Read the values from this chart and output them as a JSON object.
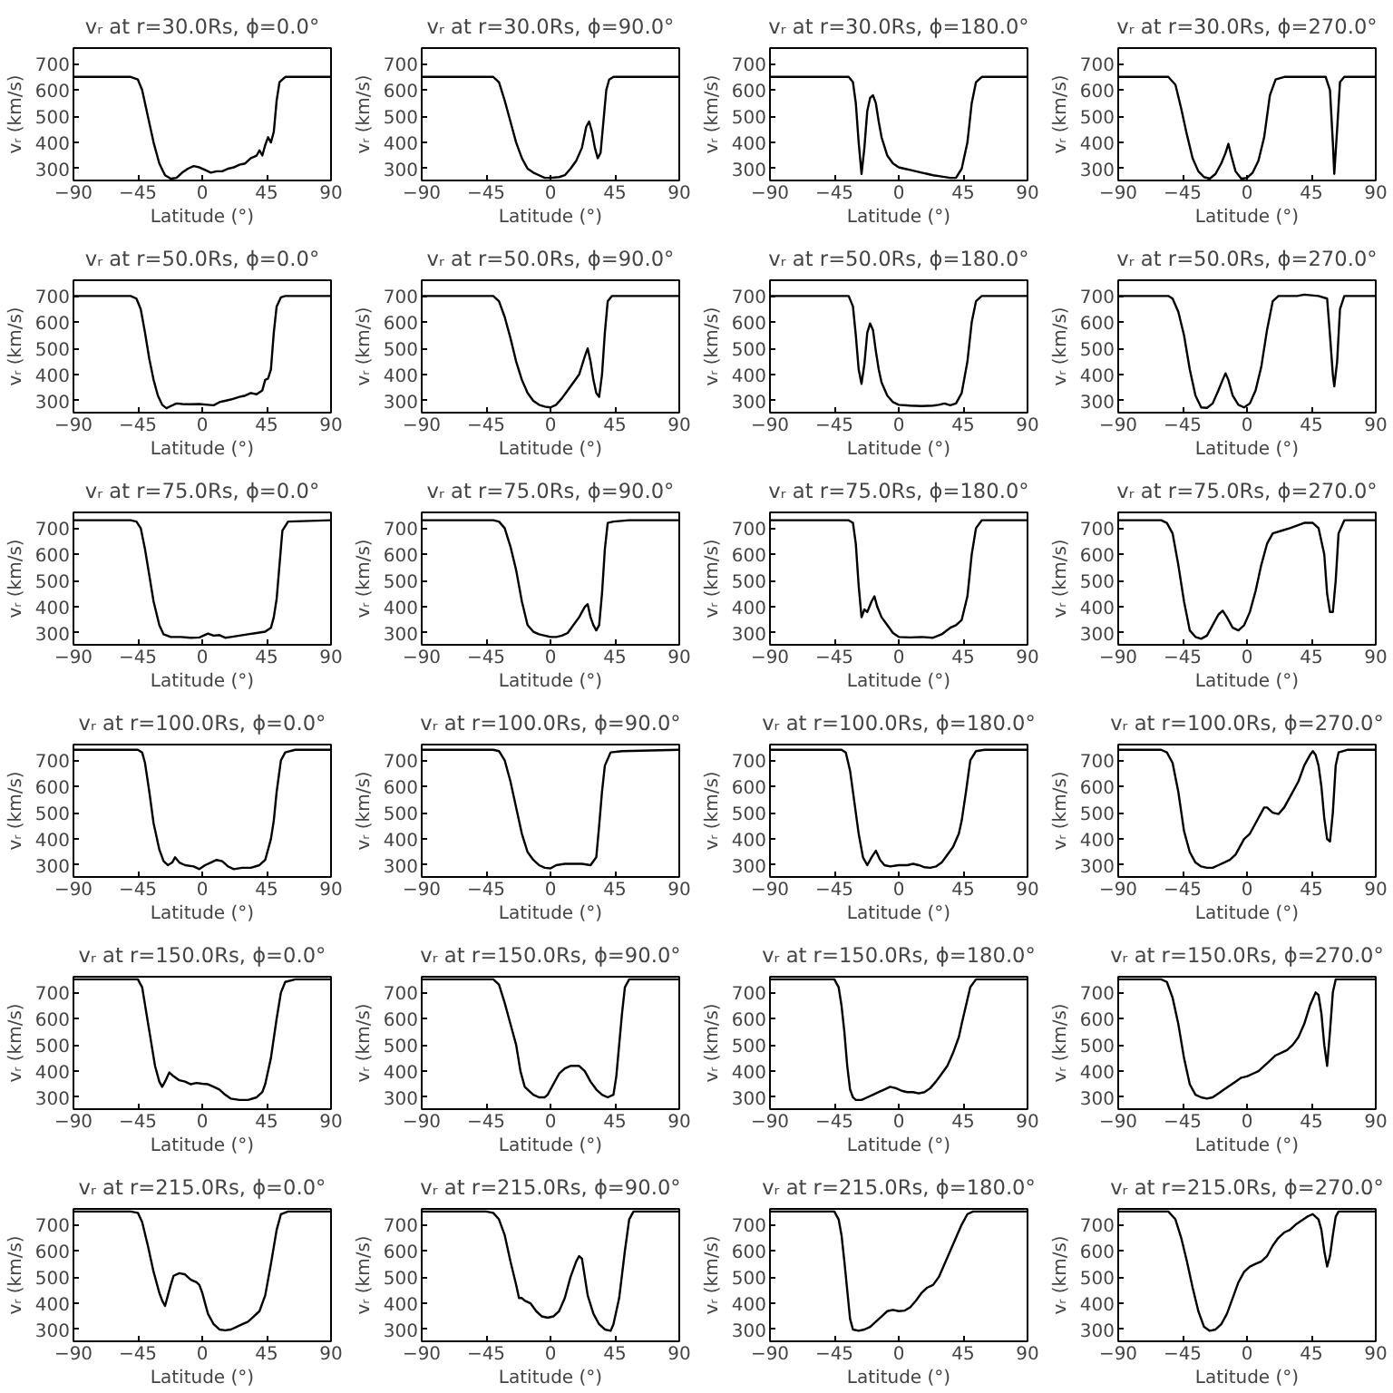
{
  "chart_data": [
    {
      "type": "line",
      "title": "vᵣ at r=30.0Rs, ϕ=0.0°",
      "xlabel": "Latitude (°)",
      "ylabel": "vᵣ (km/s)",
      "color": "#000000",
      "xlim": [
        -90,
        90
      ],
      "ylim": [
        255,
        760
      ],
      "xticks": [
        -90,
        -45,
        0,
        45,
        90
      ],
      "yticks": [
        300,
        400,
        500,
        600,
        700
      ],
      "x": [
        -90,
        -50,
        -45,
        -42,
        -38,
        -34,
        -30,
        -26,
        -22,
        -18,
        -14,
        -10,
        -6,
        -2,
        2,
        6,
        10,
        14,
        18,
        22,
        26,
        30,
        34,
        38,
        40,
        42,
        44,
        46,
        48,
        50,
        52,
        54,
        58,
        90
      ],
      "values": [
        650,
        650,
        640,
        600,
        500,
        400,
        320,
        275,
        262,
        265,
        285,
        300,
        310,
        305,
        295,
        285,
        290,
        290,
        300,
        305,
        315,
        320,
        340,
        350,
        370,
        350,
        390,
        420,
        400,
        440,
        560,
        630,
        650,
        650
      ]
    },
    {
      "type": "line",
      "title": "vᵣ at r=30.0Rs, ϕ=90.0°",
      "xlabel": "Latitude (°)",
      "ylabel": "vᵣ (km/s)",
      "color": "#000000",
      "xlim": [
        -90,
        90
      ],
      "ylim": [
        255,
        760
      ],
      "xticks": [
        -90,
        -45,
        0,
        45,
        90
      ],
      "yticks": [
        300,
        400,
        500,
        600,
        700
      ],
      "x": [
        -90,
        -40,
        -36,
        -32,
        -28,
        -24,
        -20,
        -16,
        -12,
        -8,
        -4,
        0,
        6,
        10,
        14,
        18,
        22,
        25,
        27,
        29,
        31,
        33,
        35,
        37,
        39,
        41,
        44,
        90
      ],
      "values": [
        650,
        650,
        630,
        560,
        480,
        400,
        340,
        300,
        285,
        275,
        265,
        265,
        268,
        275,
        300,
        330,
        380,
        460,
        480,
        440,
        380,
        340,
        360,
        480,
        600,
        640,
        650,
        650
      ]
    },
    {
      "type": "line",
      "title": "vᵣ at r=30.0Rs, ϕ=180.0°",
      "xlabel": "Latitude (°)",
      "ylabel": "vᵣ (km/s)",
      "color": "#000000",
      "xlim": [
        -90,
        90
      ],
      "ylim": [
        255,
        760
      ],
      "xticks": [
        -90,
        -45,
        0,
        45,
        90
      ],
      "yticks": [
        300,
        400,
        500,
        600,
        700
      ],
      "x": [
        -90,
        -35,
        -32,
        -30,
        -28,
        -26,
        -24,
        -22,
        -20,
        -18,
        -16,
        -14,
        -12,
        -8,
        -4,
        0,
        4,
        8,
        12,
        16,
        20,
        24,
        30,
        36,
        40,
        44,
        48,
        51,
        54,
        58,
        90
      ],
      "values": [
        650,
        650,
        630,
        550,
        400,
        280,
        380,
        520,
        570,
        580,
        550,
        480,
        420,
        350,
        320,
        305,
        300,
        295,
        290,
        285,
        280,
        275,
        270,
        265,
        265,
        300,
        400,
        550,
        630,
        650,
        650
      ]
    },
    {
      "type": "line",
      "title": "vᵣ at r=30.0Rs, ϕ=270.0°",
      "xlabel": "Latitude (°)",
      "ylabel": "vᵣ (km/s)",
      "color": "#000000",
      "xlim": [
        -90,
        90
      ],
      "ylim": [
        255,
        760
      ],
      "xticks": [
        -90,
        -45,
        0,
        45,
        90
      ],
      "yticks": [
        300,
        400,
        500,
        600,
        700
      ],
      "x": [
        -90,
        -55,
        -50,
        -46,
        -42,
        -38,
        -34,
        -30,
        -26,
        -22,
        -18,
        -15,
        -13,
        -11,
        -8,
        -4,
        0,
        4,
        8,
        12,
        16,
        20,
        26,
        55,
        58,
        60,
        61,
        63,
        65,
        68,
        90
      ],
      "values": [
        650,
        650,
        620,
        530,
        430,
        340,
        290,
        268,
        262,
        280,
        320,
        360,
        395,
        350,
        290,
        262,
        265,
        285,
        330,
        420,
        580,
        640,
        650,
        650,
        600,
        400,
        280,
        450,
        630,
        650,
        650
      ]
    },
    {
      "type": "line",
      "title": "vᵣ at r=50.0Rs, ϕ=0.0°",
      "xlabel": "Latitude (°)",
      "ylabel": "vᵣ (km/s)",
      "color": "#000000",
      "xlim": [
        -90,
        90
      ],
      "ylim": [
        255,
        760
      ],
      "xticks": [
        -90,
        -45,
        0,
        45,
        90
      ],
      "yticks": [
        300,
        400,
        500,
        600,
        700
      ],
      "x": [
        -90,
        -50,
        -46,
        -43,
        -40,
        -37,
        -34,
        -31,
        -28,
        -25,
        -22,
        -18,
        -14,
        -8,
        -2,
        4,
        8,
        12,
        16,
        20,
        26,
        30,
        34,
        38,
        42,
        44,
        46,
        48,
        50,
        52,
        55,
        58,
        90
      ],
      "values": [
        700,
        700,
        690,
        650,
        560,
        460,
        380,
        320,
        285,
        272,
        280,
        290,
        288,
        287,
        288,
        285,
        283,
        295,
        300,
        305,
        315,
        320,
        330,
        325,
        340,
        380,
        385,
        420,
        560,
        660,
        695,
        700,
        700
      ]
    },
    {
      "type": "line",
      "title": "vᵣ at r=50.0Rs, ϕ=90.0°",
      "xlabel": "Latitude (°)",
      "ylabel": "vᵣ (km/s)",
      "color": "#000000",
      "xlim": [
        -90,
        90
      ],
      "ylim": [
        255,
        760
      ],
      "xticks": [
        -90,
        -45,
        0,
        45,
        90
      ],
      "yticks": [
        300,
        400,
        500,
        600,
        700
      ],
      "x": [
        -90,
        -40,
        -36,
        -32,
        -28,
        -24,
        -20,
        -16,
        -12,
        -8,
        -4,
        0,
        4,
        8,
        12,
        16,
        20,
        24,
        26,
        28,
        30,
        32,
        34,
        36,
        38,
        40,
        43,
        90
      ],
      "values": [
        700,
        700,
        680,
        620,
        540,
        450,
        380,
        330,
        300,
        285,
        278,
        275,
        285,
        310,
        340,
        370,
        400,
        470,
        500,
        450,
        380,
        330,
        315,
        400,
        560,
        680,
        700,
        700
      ]
    },
    {
      "type": "line",
      "title": "vᵣ at r=50.0Rs, ϕ=180.0°",
      "xlabel": "Latitude (°)",
      "ylabel": "vᵣ (km/s)",
      "color": "#000000",
      "xlim": [
        -90,
        90
      ],
      "ylim": [
        255,
        760
      ],
      "xticks": [
        -90,
        -45,
        0,
        45,
        90
      ],
      "yticks": [
        300,
        400,
        500,
        600,
        700
      ],
      "x": [
        -90,
        -35,
        -32,
        -30,
        -28,
        -26,
        -24,
        -22,
        -20,
        -18,
        -16,
        -14,
        -12,
        -8,
        -4,
        0,
        8,
        16,
        24,
        28,
        32,
        36,
        40,
        44,
        48,
        51,
        54,
        58,
        90
      ],
      "values": [
        700,
        700,
        660,
        550,
        420,
        365,
        440,
        560,
        595,
        570,
        490,
        420,
        370,
        320,
        295,
        285,
        282,
        280,
        282,
        285,
        290,
        283,
        290,
        330,
        450,
        600,
        680,
        700,
        700
      ]
    },
    {
      "type": "line",
      "title": "vᵣ at r=50.0Rs, ϕ=270.0°",
      "xlabel": "Latitude (°)",
      "ylabel": "vᵣ (km/s)",
      "color": "#000000",
      "xlim": [
        -90,
        90
      ],
      "ylim": [
        255,
        760
      ],
      "xticks": [
        -90,
        -45,
        0,
        45,
        90
      ],
      "yticks": [
        300,
        400,
        500,
        600,
        700
      ],
      "x": [
        -90,
        -55,
        -52,
        -48,
        -44,
        -40,
        -36,
        -32,
        -28,
        -24,
        -20,
        -17,
        -15,
        -13,
        -10,
        -6,
        -2,
        2,
        6,
        10,
        14,
        18,
        22,
        35,
        40,
        50,
        56,
        58,
        60,
        61,
        63,
        65,
        68,
        90
      ],
      "values": [
        700,
        700,
        690,
        640,
        550,
        420,
        320,
        275,
        273,
        290,
        340,
        380,
        405,
        380,
        320,
        285,
        275,
        290,
        340,
        430,
        570,
        680,
        700,
        700,
        705,
        700,
        690,
        550,
        400,
        355,
        450,
        650,
        700,
        700
      ]
    },
    {
      "type": "line",
      "title": "vᵣ at r=75.0Rs, ϕ=0.0°",
      "xlabel": "Latitude (°)",
      "ylabel": "vᵣ (km/s)",
      "color": "#000000",
      "xlim": [
        -90,
        90
      ],
      "ylim": [
        255,
        760
      ],
      "xticks": [
        -90,
        -45,
        0,
        45,
        90
      ],
      "yticks": [
        300,
        400,
        500,
        600,
        700
      ],
      "x": [
        -90,
        -50,
        -46,
        -43,
        -40,
        -37,
        -34,
        -30,
        -27,
        -22,
        -15,
        -8,
        -2,
        4,
        8,
        12,
        16,
        20,
        26,
        32,
        38,
        44,
        48,
        50,
        52,
        54,
        56,
        60,
        90
      ],
      "values": [
        730,
        730,
        725,
        700,
        620,
        520,
        420,
        330,
        295,
        285,
        285,
        282,
        283,
        298,
        290,
        292,
        282,
        285,
        290,
        295,
        300,
        305,
        320,
        360,
        430,
        560,
        690,
        725,
        730
      ]
    },
    {
      "type": "line",
      "title": "vᵣ at r=75.0Rs, ϕ=90.0°",
      "xlabel": "Latitude (°)",
      "ylabel": "vᵣ (km/s)",
      "color": "#000000",
      "xlim": [
        -90,
        90
      ],
      "ylim": [
        255,
        760
      ],
      "xticks": [
        -90,
        -45,
        0,
        45,
        90
      ],
      "yticks": [
        300,
        400,
        500,
        600,
        700
      ],
      "x": [
        -90,
        -40,
        -36,
        -32,
        -28,
        -24,
        -20,
        -16,
        -12,
        -8,
        -4,
        0,
        4,
        8,
        12,
        16,
        20,
        24,
        26,
        28,
        30,
        32,
        34,
        36,
        38,
        40,
        44,
        55,
        90
      ],
      "values": [
        730,
        730,
        725,
        700,
        630,
        540,
        420,
        330,
        305,
        295,
        290,
        285,
        285,
        290,
        300,
        330,
        360,
        400,
        410,
        360,
        330,
        310,
        330,
        450,
        620,
        720,
        725,
        730,
        730
      ]
    },
    {
      "type": "line",
      "title": "vᵣ at r=75.0Rs, ϕ=180.0°",
      "xlabel": "Latitude (°)",
      "ylabel": "vᵣ (km/s)",
      "color": "#000000",
      "xlim": [
        -90,
        90
      ],
      "ylim": [
        255,
        760
      ],
      "xticks": [
        -90,
        -45,
        0,
        45,
        90
      ],
      "yticks": [
        300,
        400,
        500,
        600,
        700
      ],
      "x": [
        -90,
        -35,
        -32,
        -30,
        -28,
        -26,
        -24,
        -22,
        -19,
        -17,
        -15,
        -12,
        -8,
        -4,
        0,
        8,
        16,
        24,
        30,
        36,
        40,
        44,
        48,
        51,
        54,
        58,
        90
      ],
      "values": [
        730,
        730,
        720,
        640,
        480,
        360,
        390,
        380,
        420,
        440,
        400,
        360,
        330,
        300,
        285,
        283,
        285,
        282,
        295,
        320,
        330,
        350,
        440,
        600,
        700,
        730,
        730
      ]
    },
    {
      "type": "line",
      "title": "vᵣ at r=75.0Rs, ϕ=270.0°",
      "xlabel": "Latitude (°)",
      "ylabel": "vᵣ (km/s)",
      "color": "#000000",
      "xlim": [
        -90,
        90
      ],
      "ylim": [
        255,
        760
      ],
      "xticks": [
        -90,
        -45,
        0,
        45,
        90
      ],
      "yticks": [
        300,
        400,
        500,
        600,
        700
      ],
      "x": [
        -90,
        -60,
        -56,
        -52,
        -48,
        -44,
        -40,
        -36,
        -32,
        -28,
        -24,
        -20,
        -17,
        -14,
        -10,
        -6,
        -2,
        2,
        6,
        10,
        14,
        18,
        24,
        30,
        40,
        46,
        50,
        54,
        56,
        58,
        60,
        62,
        64,
        68,
        90
      ],
      "values": [
        730,
        730,
        720,
        680,
        560,
        420,
        310,
        285,
        278,
        290,
        330,
        370,
        385,
        360,
        320,
        310,
        330,
        380,
        460,
        560,
        640,
        680,
        690,
        700,
        720,
        720,
        700,
        600,
        450,
        380,
        380,
        500,
        680,
        730,
        730
      ]
    },
    {
      "type": "line",
      "title": "vᵣ at r=100.0Rs, ϕ=0.0°",
      "xlabel": "Latitude (°)",
      "ylabel": "vᵣ (km/s)",
      "color": "#000000",
      "xlim": [
        -90,
        90
      ],
      "ylim": [
        255,
        760
      ],
      "xticks": [
        -90,
        -45,
        0,
        45,
        90
      ],
      "yticks": [
        300,
        400,
        500,
        600,
        700
      ],
      "x": [
        -90,
        -45,
        -42,
        -40,
        -37,
        -34,
        -30,
        -27,
        -24,
        -21,
        -19,
        -16,
        -12,
        -6,
        -2,
        2,
        6,
        10,
        14,
        18,
        22,
        28,
        34,
        40,
        44,
        48,
        50,
        52,
        55,
        58,
        65,
        90
      ],
      "values": [
        740,
        740,
        730,
        690,
        580,
        460,
        360,
        315,
        300,
        310,
        330,
        310,
        300,
        295,
        285,
        300,
        310,
        320,
        315,
        295,
        285,
        290,
        290,
        300,
        320,
        400,
        470,
        580,
        700,
        730,
        740,
        740
      ]
    },
    {
      "type": "line",
      "title": "vᵣ at r=100.0Rs, ϕ=90.0°",
      "xlabel": "Latitude (°)",
      "ylabel": "vᵣ (km/s)",
      "color": "#000000",
      "xlim": [
        -90,
        90
      ],
      "ylim": [
        255,
        760
      ],
      "xticks": [
        -90,
        -45,
        0,
        45,
        90
      ],
      "yticks": [
        300,
        400,
        500,
        600,
        700
      ],
      "x": [
        -90,
        -40,
        -36,
        -32,
        -28,
        -24,
        -20,
        -16,
        -12,
        -8,
        -4,
        0,
        4,
        10,
        16,
        22,
        28,
        32,
        34,
        36,
        38,
        42,
        50,
        90
      ],
      "values": [
        740,
        740,
        735,
        700,
        620,
        520,
        420,
        350,
        320,
        300,
        290,
        288,
        300,
        305,
        305,
        305,
        300,
        330,
        450,
        580,
        680,
        730,
        735,
        740
      ]
    },
    {
      "type": "line",
      "title": "vᵣ at r=100.0Rs, ϕ=180.0°",
      "xlabel": "Latitude (°)",
      "ylabel": "vᵣ (km/s)",
      "color": "#000000",
      "xlim": [
        -90,
        90
      ],
      "ylim": [
        255,
        760
      ],
      "xticks": [
        -90,
        -45,
        0,
        45,
        90
      ],
      "yticks": [
        300,
        400,
        500,
        600,
        700
      ],
      "x": [
        -90,
        -40,
        -37,
        -34,
        -31,
        -28,
        -25,
        -22,
        -19,
        -16,
        -13,
        -10,
        -6,
        0,
        6,
        10,
        14,
        18,
        22,
        26,
        30,
        34,
        38,
        42,
        44,
        47,
        50,
        54,
        60,
        90
      ],
      "values": [
        740,
        740,
        730,
        660,
        540,
        420,
        330,
        300,
        330,
        355,
        320,
        300,
        295,
        300,
        300,
        305,
        300,
        292,
        290,
        295,
        310,
        340,
        370,
        420,
        470,
        580,
        700,
        735,
        740,
        740
      ]
    },
    {
      "type": "line",
      "title": "vᵣ at r=100.0Rs, ϕ=270.0°",
      "xlabel": "Latitude (°)",
      "ylabel": "vᵣ (km/s)",
      "color": "#000000",
      "xlim": [
        -90,
        90
      ],
      "ylim": [
        255,
        760
      ],
      "xticks": [
        -90,
        -45,
        0,
        45,
        90
      ],
      "yticks": [
        300,
        400,
        500,
        600,
        700
      ],
      "x": [
        -90,
        -60,
        -56,
        -52,
        -48,
        -44,
        -40,
        -36,
        -32,
        -28,
        -24,
        -20,
        -16,
        -12,
        -8,
        -4,
        -2,
        2,
        6,
        10,
        12,
        14,
        18,
        22,
        26,
        30,
        36,
        40,
        44,
        46,
        48,
        50,
        52,
        54,
        56,
        58,
        60,
        62,
        64,
        70,
        90
      ],
      "values": [
        740,
        740,
        730,
        690,
        580,
        430,
        350,
        310,
        295,
        290,
        290,
        300,
        310,
        320,
        340,
        380,
        400,
        420,
        460,
        500,
        520,
        520,
        500,
        495,
        520,
        560,
        620,
        680,
        720,
        735,
        720,
        680,
        600,
        480,
        400,
        390,
        500,
        680,
        730,
        740,
        740
      ]
    },
    {
      "type": "line",
      "title": "vᵣ at r=150.0Rs, ϕ=0.0°",
      "xlabel": "Latitude (°)",
      "ylabel": "vᵣ (km/s)",
      "color": "#000000",
      "xlim": [
        -90,
        90
      ],
      "ylim": [
        255,
        760
      ],
      "xticks": [
        -90,
        -45,
        0,
        45,
        90
      ],
      "yticks": [
        300,
        400,
        500,
        600,
        700
      ],
      "x": [
        -90,
        -45,
        -42,
        -39,
        -36,
        -33,
        -30,
        -28,
        -26,
        -23,
        -20,
        -16,
        -12,
        -8,
        -4,
        0,
        4,
        8,
        12,
        16,
        20,
        26,
        32,
        38,
        42,
        44,
        48,
        52,
        55,
        58,
        65,
        90
      ],
      "values": [
        750,
        750,
        720,
        620,
        520,
        420,
        360,
        340,
        360,
        395,
        380,
        365,
        360,
        350,
        355,
        352,
        350,
        340,
        330,
        310,
        295,
        290,
        290,
        300,
        320,
        350,
        450,
        600,
        700,
        740,
        750,
        750
      ]
    },
    {
      "type": "line",
      "title": "vᵣ at r=150.0Rs, ϕ=90.0°",
      "xlabel": "Latitude (°)",
      "ylabel": "vᵣ (km/s)",
      "color": "#000000",
      "xlim": [
        -90,
        90
      ],
      "ylim": [
        255,
        760
      ],
      "xticks": [
        -90,
        -45,
        0,
        45,
        90
      ],
      "yticks": [
        300,
        400,
        500,
        600,
        700
      ],
      "x": [
        -90,
        -40,
        -36,
        -32,
        -28,
        -24,
        -21,
        -18,
        -15,
        -12,
        -8,
        -4,
        -2,
        2,
        6,
        10,
        14,
        20,
        24,
        28,
        32,
        36,
        40,
        44,
        46,
        48,
        50,
        52,
        55,
        90
      ],
      "values": [
        750,
        750,
        730,
        660,
        580,
        500,
        400,
        340,
        325,
        310,
        300,
        300,
        310,
        350,
        390,
        410,
        420,
        420,
        400,
        360,
        330,
        310,
        300,
        310,
        380,
        500,
        620,
        720,
        750,
        750
      ]
    },
    {
      "type": "line",
      "title": "vᵣ at r=150.0Rs, ϕ=180.0°",
      "xlabel": "Latitude (°)",
      "ylabel": "vᵣ (km/s)",
      "color": "#000000",
      "xlim": [
        -90,
        90
      ],
      "ylim": [
        255,
        760
      ],
      "xticks": [
        -90,
        -45,
        0,
        45,
        90
      ],
      "yticks": [
        300,
        400,
        500,
        600,
        700
      ],
      "x": [
        -90,
        -45,
        -42,
        -40,
        -38,
        -36,
        -34,
        -32,
        -30,
        -26,
        -22,
        -18,
        -14,
        -10,
        -6,
        -2,
        2,
        6,
        10,
        14,
        18,
        22,
        26,
        30,
        34,
        38,
        42,
        44,
        47,
        50,
        54,
        90
      ],
      "values": [
        750,
        750,
        720,
        650,
        550,
        420,
        330,
        300,
        290,
        290,
        300,
        310,
        320,
        330,
        340,
        335,
        325,
        320,
        320,
        315,
        320,
        335,
        360,
        390,
        420,
        470,
        530,
        580,
        650,
        720,
        750,
        750
      ]
    },
    {
      "type": "line",
      "title": "vᵣ at r=150.0Rs, ϕ=270.0°",
      "xlabel": "Latitude (°)",
      "ylabel": "vᵣ (km/s)",
      "color": "#000000",
      "xlim": [
        -90,
        90
      ],
      "ylim": [
        255,
        760
      ],
      "xticks": [
        -90,
        -45,
        0,
        45,
        90
      ],
      "yticks": [
        300,
        400,
        500,
        600,
        700
      ],
      "x": [
        -90,
        -60,
        -56,
        -52,
        -48,
        -44,
        -40,
        -36,
        -32,
        -28,
        -24,
        -20,
        -16,
        -12,
        -8,
        -4,
        0,
        4,
        8,
        12,
        16,
        20,
        24,
        28,
        32,
        36,
        40,
        44,
        48,
        50,
        52,
        54,
        56,
        58,
        60,
        62,
        90
      ],
      "values": [
        750,
        750,
        740,
        680,
        580,
        450,
        350,
        310,
        300,
        295,
        300,
        315,
        330,
        345,
        360,
        375,
        380,
        390,
        400,
        420,
        440,
        460,
        470,
        480,
        500,
        530,
        580,
        650,
        700,
        690,
        620,
        500,
        420,
        550,
        700,
        750,
        750
      ]
    },
    {
      "type": "line",
      "title": "vᵣ at r=215.0Rs, ϕ=0.0°",
      "xlabel": "Latitude (°)",
      "ylabel": "vᵣ (km/s)",
      "color": "#000000",
      "xlim": [
        -90,
        90
      ],
      "ylim": [
        255,
        760
      ],
      "xticks": [
        -90,
        -45,
        0,
        45,
        90
      ],
      "yticks": [
        300,
        400,
        500,
        600,
        700
      ],
      "x": [
        -90,
        -50,
        -45,
        -42,
        -38,
        -34,
        -30,
        -28,
        -26,
        -24,
        -22,
        -20,
        -16,
        -12,
        -8,
        -4,
        -2,
        0,
        2,
        4,
        8,
        12,
        16,
        20,
        24,
        28,
        32,
        36,
        40,
        44,
        48,
        52,
        55,
        60,
        90
      ],
      "values": [
        750,
        750,
        745,
        710,
        620,
        520,
        440,
        410,
        390,
        430,
        470,
        505,
        515,
        510,
        490,
        480,
        470,
        440,
        400,
        360,
        320,
        300,
        297,
        300,
        310,
        320,
        330,
        350,
        370,
        430,
        550,
        680,
        740,
        750,
        750
      ]
    },
    {
      "type": "line",
      "title": "vᵣ at r=215.0Rs, ϕ=90.0°",
      "xlabel": "Latitude (°)",
      "ylabel": "vᵣ (km/s)",
      "color": "#000000",
      "xlim": [
        -90,
        90
      ],
      "ylim": [
        255,
        760
      ],
      "xticks": [
        -90,
        -45,
        0,
        45,
        90
      ],
      "yticks": [
        300,
        400,
        500,
        600,
        700
      ],
      "x": [
        -90,
        -45,
        -40,
        -36,
        -32,
        -28,
        -24,
        -22,
        -20,
        -18,
        -14,
        -10,
        -6,
        -2,
        2,
        6,
        10,
        14,
        18,
        20,
        22,
        24,
        26,
        30,
        34,
        38,
        42,
        44,
        48,
        52,
        55,
        58,
        90
      ],
      "values": [
        750,
        750,
        745,
        720,
        660,
        560,
        470,
        420,
        420,
        410,
        400,
        370,
        350,
        345,
        350,
        370,
        420,
        500,
        560,
        580,
        570,
        500,
        430,
        360,
        320,
        300,
        295,
        320,
        420,
        600,
        720,
        750,
        750
      ]
    },
    {
      "type": "line",
      "title": "vᵣ at r=215.0Rs, ϕ=180.0°",
      "xlabel": "Latitude (°)",
      "ylabel": "vᵣ (km/s)",
      "color": "#000000",
      "xlim": [
        -90,
        90
      ],
      "ylim": [
        255,
        760
      ],
      "xticks": [
        -90,
        -45,
        0,
        45,
        90
      ],
      "yticks": [
        300,
        400,
        500,
        600,
        700
      ],
      "x": [
        -90,
        -45,
        -42,
        -40,
        -38,
        -36,
        -34,
        -32,
        -28,
        -24,
        -20,
        -16,
        -12,
        -8,
        -4,
        0,
        4,
        8,
        12,
        16,
        20,
        24,
        28,
        32,
        36,
        40,
        44,
        48,
        52,
        90
      ],
      "values": [
        750,
        750,
        720,
        660,
        560,
        450,
        340,
        300,
        295,
        300,
        310,
        330,
        350,
        370,
        375,
        370,
        372,
        385,
        410,
        440,
        460,
        470,
        500,
        550,
        600,
        650,
        700,
        740,
        750,
        750
      ]
    },
    {
      "type": "line",
      "title": "vᵣ at r=215.0Rs, ϕ=270.0°",
      "xlabel": "Latitude (°)",
      "ylabel": "vᵣ (km/s)",
      "color": "#000000",
      "xlim": [
        -90,
        90
      ],
      "ylim": [
        255,
        760
      ],
      "xticks": [
        -90,
        -45,
        0,
        45,
        90
      ],
      "yticks": [
        300,
        400,
        500,
        600,
        700
      ],
      "x": [
        -90,
        -55,
        -50,
        -46,
        -42,
        -38,
        -34,
        -30,
        -26,
        -22,
        -18,
        -14,
        -10,
        -6,
        -2,
        2,
        6,
        10,
        14,
        18,
        22,
        26,
        30,
        34,
        38,
        42,
        46,
        50,
        52,
        54,
        56,
        58,
        60,
        62,
        64,
        90
      ],
      "values": [
        750,
        750,
        720,
        650,
        560,
        460,
        370,
        310,
        295,
        300,
        320,
        360,
        420,
        480,
        520,
        540,
        550,
        560,
        580,
        620,
        650,
        670,
        680,
        700,
        715,
        730,
        740,
        720,
        680,
        600,
        540,
        580,
        660,
        730,
        750,
        750
      ]
    }
  ]
}
